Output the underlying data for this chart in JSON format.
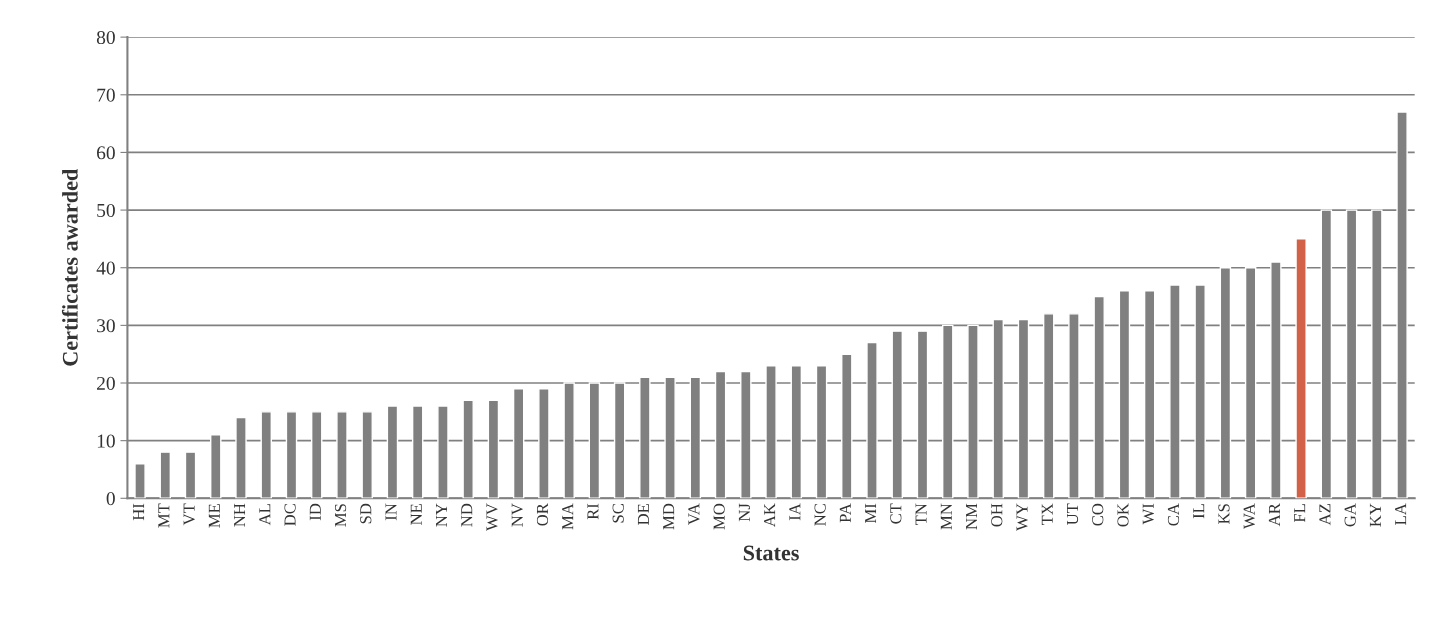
{
  "chart_data": {
    "type": "bar",
    "xlabel": "States",
    "ylabel": "Certificates awarded",
    "categories": [
      "HI",
      "MT",
      "VT",
      "ME",
      "NH",
      "AL",
      "DC",
      "ID",
      "MS",
      "SD",
      "IN",
      "NE",
      "NY",
      "ND",
      "WV",
      "NV",
      "OR",
      "MA",
      "RI",
      "SC",
      "DE",
      "MD",
      "VA",
      "MO",
      "NJ",
      "AK",
      "IA",
      "NC",
      "PA",
      "MI",
      "CT",
      "TN",
      "MN",
      "NM",
      "OH",
      "WY",
      "TX",
      "UT",
      "CO",
      "OK",
      "WI",
      "CA",
      "IL",
      "KS",
      "WA",
      "AR",
      "FL",
      "AZ",
      "GA",
      "KY",
      "LA"
    ],
    "values": [
      6,
      8,
      8,
      11,
      14,
      15,
      15,
      15,
      15,
      15,
      16,
      16,
      16,
      17,
      17,
      19,
      19,
      20,
      20,
      20,
      21,
      21,
      21,
      22,
      22,
      23,
      23,
      23,
      25,
      27,
      29,
      29,
      30,
      30,
      31,
      31,
      32,
      32,
      35,
      36,
      36,
      37,
      37,
      40,
      40,
      41,
      45,
      50,
      50,
      50,
      67
    ],
    "colors": [
      "#808080",
      "#808080",
      "#808080",
      "#808080",
      "#808080",
      "#808080",
      "#808080",
      "#808080",
      "#808080",
      "#808080",
      "#808080",
      "#808080",
      "#808080",
      "#808080",
      "#808080",
      "#808080",
      "#808080",
      "#808080",
      "#808080",
      "#808080",
      "#808080",
      "#808080",
      "#808080",
      "#808080",
      "#808080",
      "#808080",
      "#808080",
      "#808080",
      "#808080",
      "#808080",
      "#808080",
      "#808080",
      "#808080",
      "#808080",
      "#808080",
      "#808080",
      "#808080",
      "#808080",
      "#808080",
      "#808080",
      "#808080",
      "#808080",
      "#808080",
      "#808080",
      "#808080",
      "#808080",
      "#d2614a",
      "#808080",
      "#808080",
      "#808080",
      "#808080"
    ],
    "ylim": [
      0,
      80
    ],
    "yticks": [
      0,
      10,
      20,
      30,
      40,
      50,
      60,
      70,
      80
    ],
    "grid": "y",
    "legend": false
  }
}
